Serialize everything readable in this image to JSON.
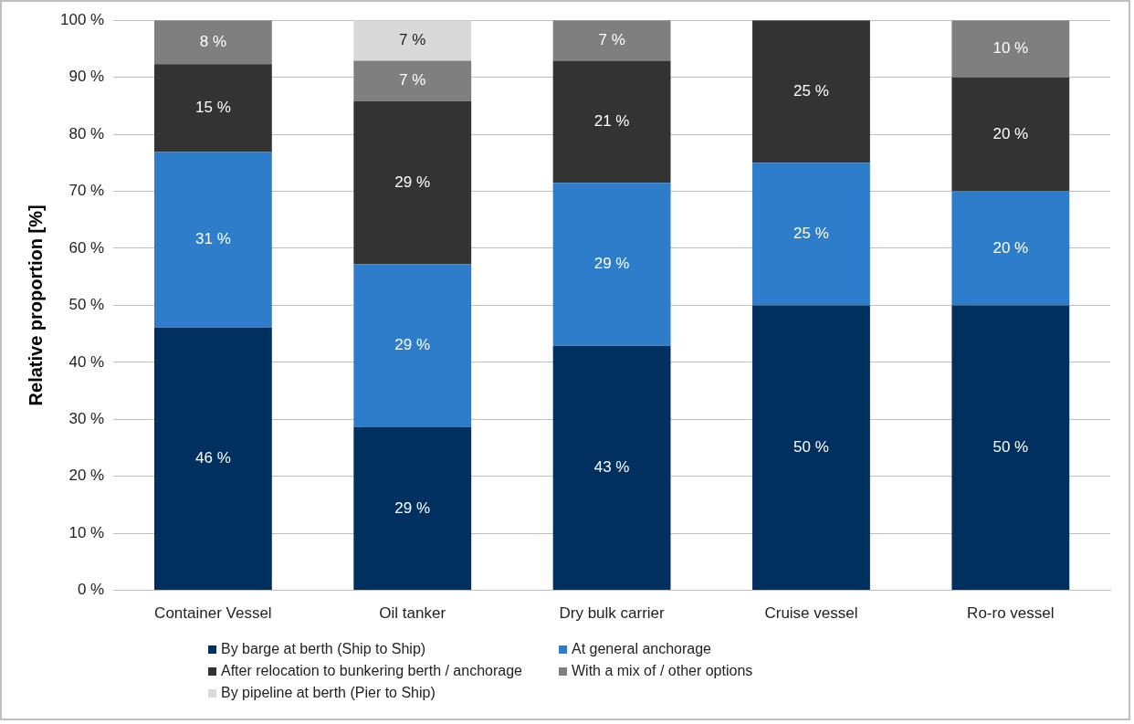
{
  "chart_data": {
    "type": "bar",
    "stacked": true,
    "ylabel": "Relative proportion [%]",
    "categories": [
      "Container Vessel",
      "Oil tanker",
      "Dry bulk carrier",
      "Cruise vessel",
      "Ro-ro vessel"
    ],
    "ylim": [
      0,
      100
    ],
    "yticks": [
      {
        "value": 0,
        "label": "0 %"
      },
      {
        "value": 10,
        "label": "10 %"
      },
      {
        "value": 20,
        "label": "20 %"
      },
      {
        "value": 30,
        "label": "30 %"
      },
      {
        "value": 40,
        "label": "40 %"
      },
      {
        "value": 50,
        "label": "50 %"
      },
      {
        "value": 60,
        "label": "60 %"
      },
      {
        "value": 70,
        "label": "70 %"
      },
      {
        "value": 80,
        "label": "80 %"
      },
      {
        "value": 90,
        "label": "90 %"
      },
      {
        "value": 100,
        "label": "100 %"
      }
    ],
    "grid": "y",
    "legend": "bottom",
    "series": [
      {
        "name": "By barge at berth (Ship to Ship)",
        "color": "#003060",
        "values": [
          46.1,
          28.6,
          42.9,
          50,
          50
        ],
        "value_labels": [
          "46 %",
          "29 %",
          "43 %",
          "50 %",
          "50 %"
        ]
      },
      {
        "name": "At general anchorage",
        "color": "#2e7dcb",
        "values": [
          30.8,
          28.6,
          28.6,
          25,
          20
        ],
        "value_labels": [
          "31 %",
          "29 %",
          "29 %",
          "25 %",
          "20 %"
        ]
      },
      {
        "name": "After relocation to bunkering berth / anchorage",
        "color": "#333333",
        "values": [
          15.4,
          28.6,
          21.4,
          25,
          20
        ],
        "value_labels": [
          "15 %",
          "29 %",
          "21 %",
          "25 %",
          "20 %"
        ]
      },
      {
        "name": "With a mix of / other options",
        "color": "#7f7f7f",
        "values": [
          7.7,
          7.1,
          7.1,
          null,
          10
        ],
        "value_labels": [
          "8 %",
          "7 %",
          "7 %",
          null,
          "10 %"
        ]
      },
      {
        "name": "By pipeline at berth (Pier to Ship)",
        "color": "#d9d9d9",
        "values": [
          null,
          7.1,
          null,
          null,
          null
        ],
        "value_labels": [
          null,
          "7 %",
          null,
          null,
          null
        ]
      }
    ]
  }
}
